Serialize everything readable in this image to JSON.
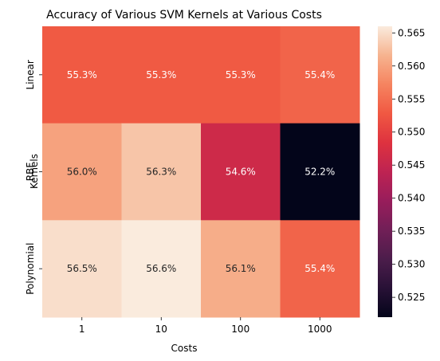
{
  "chart_data": {
    "type": "heatmap",
    "title": "Accuracy of Various SVM Kernels at Various Costs",
    "xlabel": "Costs",
    "ylabel": "Kernels",
    "x_categories": [
      "1",
      "10",
      "100",
      "1000"
    ],
    "y_categories": [
      "Linear",
      "RBF",
      "Polynomial"
    ],
    "values": [
      [
        0.553,
        0.553,
        0.553,
        0.554
      ],
      [
        0.56,
        0.563,
        0.546,
        0.522
      ],
      [
        0.565,
        0.566,
        0.561,
        0.554
      ]
    ],
    "cell_labels": [
      [
        "55.3%",
        "55.3%",
        "55.3%",
        "55.4%"
      ],
      [
        "56.0%",
        "56.3%",
        "54.6%",
        "52.2%"
      ],
      [
        "56.5%",
        "56.6%",
        "56.1%",
        "55.4%"
      ]
    ],
    "colorbar": {
      "min": 0.522,
      "max": 0.566,
      "ticks": [
        "0.525",
        "0.530",
        "0.535",
        "0.540",
        "0.545",
        "0.550",
        "0.555",
        "0.560",
        "0.565"
      ]
    },
    "colormap": "rocket",
    "grid": false
  }
}
